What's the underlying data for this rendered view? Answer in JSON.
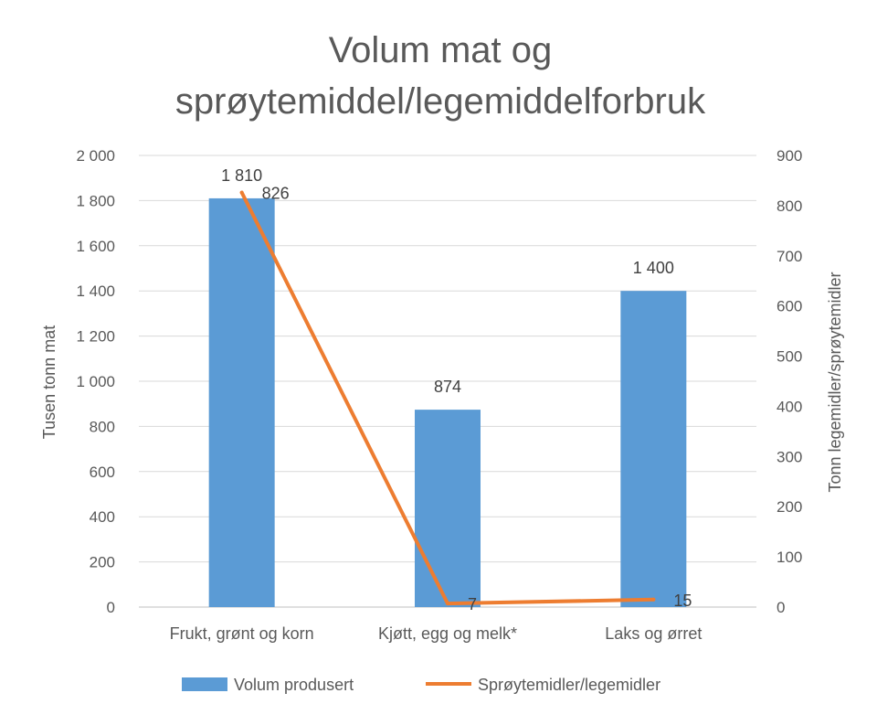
{
  "chart_data": {
    "type": "bar",
    "title_lines": [
      "Volum mat og",
      "sprøytemiddel/legemiddelforbruk"
    ],
    "categories": [
      "Frukt, grønt og korn",
      "Kjøtt, egg og melk*",
      "Laks og ørret"
    ],
    "ylabel_left": "Tusen tonn mat",
    "ylabel_right": "Tonn legemidler/sprøytemidler",
    "ylim_left": [
      0,
      2000
    ],
    "ylim_right": [
      0,
      900
    ],
    "yticks_left": [
      "0",
      "200",
      "400",
      "600",
      "800",
      "1 000",
      "1 200",
      "1 400",
      "1 600",
      "1 800",
      "2 000"
    ],
    "yticks_right": [
      "0",
      "100",
      "200",
      "300",
      "400",
      "500",
      "600",
      "700",
      "800",
      "900"
    ],
    "grid": true,
    "legend_position": "bottom",
    "series": [
      {
        "name": "Volum produsert",
        "type": "bar",
        "axis": "left",
        "color": "#5B9BD5",
        "values": [
          1810,
          874,
          1400
        ],
        "labels": [
          "1 810",
          "874",
          "1 400"
        ]
      },
      {
        "name": "Sprøytemidler/legemidler",
        "type": "line",
        "axis": "right",
        "color": "#ED7D31",
        "values": [
          826,
          7,
          15
        ],
        "labels": [
          "826",
          "7",
          "15"
        ]
      }
    ]
  }
}
